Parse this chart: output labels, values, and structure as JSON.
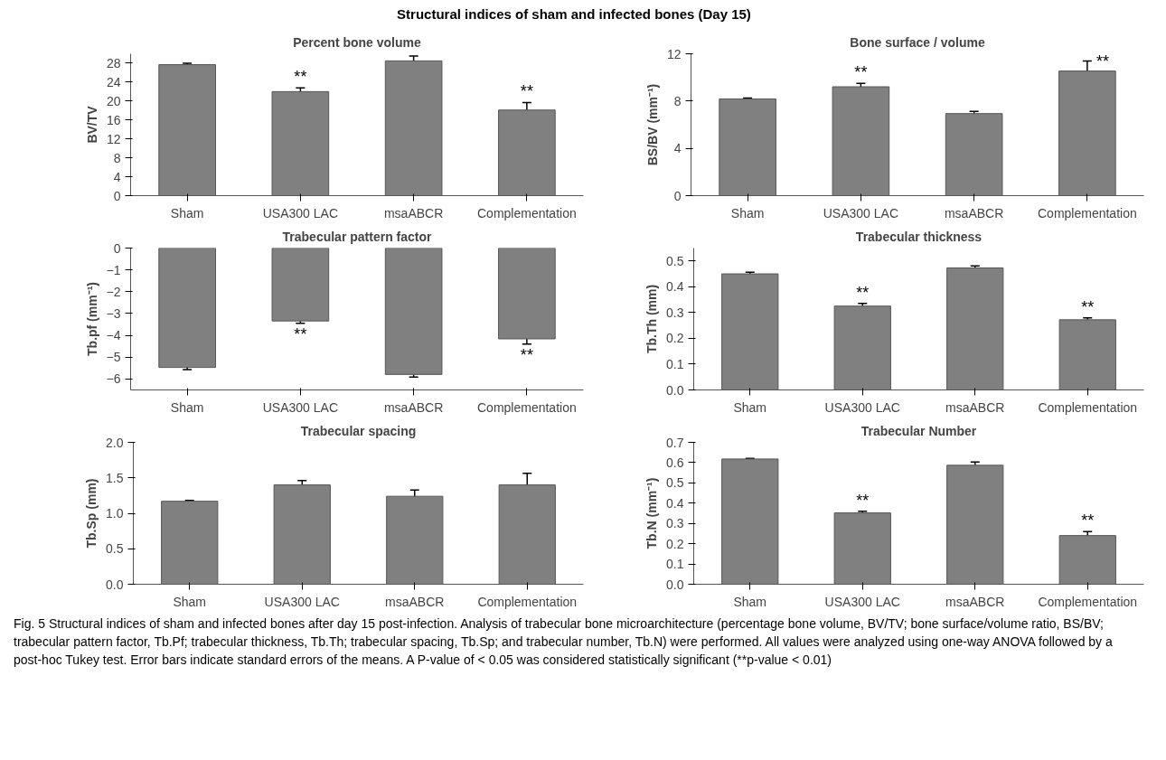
{
  "chart_data": [
    {
      "type": "other",
      "title": "Structural indices of sham and infected bones (Day 15)",
      "annotations": [
        "Fig. 5 Structural indices of sham and infected bones after day 15 post-infection. Analysis of trabecular bone microarchitecture (percentage bone volume, BV/TV; bone surface/volume ratio, BS/BV; trabecular pattern factor, Tb.Pf; trabecular thickness, Tb.Th; trabecular spacing, Tb.Sp; and trabecular number, Tb.N) were performed. All values were analyzed using one-way ANOVA followed by a post-hoc Tukey test. Error bars indicate standard errors of the means. A P-value of < 0.05 was considered statistically significant (**p-value < 0.01)"
      ]
    },
    {
      "type": "bar",
      "title": "Percent bone volume",
      "ylabel": "BV/TV",
      "categories": [
        "Sham",
        "USA300 LAC",
        "msaABCR",
        "Complementation"
      ],
      "values": [
        27.7,
        22.0,
        28.5,
        18.1
      ],
      "errors": [
        0.3,
        0.8,
        1.0,
        1.6
      ],
      "color": "#808080",
      "ylim": [
        0,
        30
      ],
      "yticks": [
        0,
        4,
        8,
        12,
        16,
        20,
        24,
        28
      ],
      "grid": false,
      "annotations": [
        {
          "text": "**",
          "x": "USA300 LAC",
          "y": 22.8
        },
        {
          "text": "**",
          "x": "Complementation",
          "y": 19.7
        }
      ]
    },
    {
      "type": "bar",
      "title": "Bone surface / volume",
      "ylabel": "BS/BV (mm⁻¹)",
      "categories": [
        "Sham",
        "USA300 LAC",
        "msaABCR",
        "Complementation"
      ],
      "values": [
        8.18,
        9.21,
        6.94,
        10.54
      ],
      "errors": [
        0.08,
        0.28,
        0.19,
        0.84
      ],
      "color": "#808080",
      "ylim": [
        0,
        12
      ],
      "yticks": [
        0,
        4,
        8,
        12
      ],
      "grid": false,
      "annotations": [
        {
          "text": "**",
          "x": "USA300 LAC",
          "y": 9.49
        },
        {
          "text": "**",
          "x": "Complementation",
          "y": 11.38
        }
      ]
    },
    {
      "type": "bar",
      "title": "Trabecular pattern factor",
      "ylabel": "Tb.pf (mm⁻¹)",
      "categories": [
        "Sham",
        "USA300 LAC",
        "msaABCR",
        "Complementation"
      ],
      "values": [
        -5.47,
        -3.34,
        -5.79,
        -4.16
      ],
      "errors": [
        0.1,
        0.11,
        0.12,
        0.24
      ],
      "color": "#808080",
      "ylim": [
        -6.5,
        0
      ],
      "yticks": [
        -6,
        -5,
        -4,
        -3,
        -2,
        -1,
        0
      ],
      "grid": false,
      "annotations": [
        {
          "text": "**",
          "x": "USA300 LAC",
          "y": -3.45
        },
        {
          "text": "**",
          "x": "Complementation",
          "y": -4.4
        }
      ]
    },
    {
      "type": "bar",
      "title": "Trabecular thickness",
      "ylabel": "Tb.Th (mm)",
      "categories": [
        "Sham",
        "USA300 LAC",
        "msaABCR",
        "Complementation"
      ],
      "values": [
        0.45,
        0.325,
        0.473,
        0.272
      ],
      "errors": [
        0.006,
        0.01,
        0.008,
        0.007
      ],
      "color": "#808080",
      "ylim": [
        0,
        0.55
      ],
      "yticks": [
        {
          "value": 0,
          "label": "0.0"
        },
        0.1,
        0.2,
        0.3,
        0.4,
        0.5
      ],
      "grid": false,
      "annotations": [
        {
          "text": "**",
          "x": "USA300 LAC",
          "y": 0.335
        },
        {
          "text": "**",
          "x": "Complementation",
          "y": 0.279
        }
      ]
    },
    {
      "type": "bar",
      "title": "Trabecular spacing",
      "ylabel": "Tb.Sp (mm)",
      "categories": [
        "Sham",
        "USA300 LAC",
        "msaABCR",
        "Complementation"
      ],
      "values": [
        1.17,
        1.4,
        1.24,
        1.4
      ],
      "errors": [
        0.01,
        0.063,
        0.088,
        0.163
      ],
      "color": "#808080",
      "ylim": [
        0,
        2
      ],
      "yticks": [
        {
          "value": 0,
          "label": "0.0"
        },
        0.5,
        {
          "value": 1,
          "label": "1.0"
        },
        1.5,
        {
          "value": 2,
          "label": "2.0"
        }
      ],
      "grid": false
    },
    {
      "type": "bar",
      "title": "Trabecular Number",
      "ylabel": "Tb.N (mm⁻¹)",
      "categories": [
        "Sham",
        "USA300 LAC",
        "msaABCR",
        "Complementation"
      ],
      "values": [
        0.618,
        0.352,
        0.587,
        0.24
      ],
      "errors": [
        0.003,
        0.008,
        0.016,
        0.02
      ],
      "color": "#808080",
      "ylim": [
        0,
        0.7
      ],
      "yticks": [
        {
          "value": 0,
          "label": "0.0"
        },
        0.1,
        0.2,
        0.3,
        0.4,
        0.5,
        0.6,
        0.7
      ],
      "grid": false,
      "annotations": [
        {
          "text": "**",
          "x": "USA300 LAC",
          "y": 0.36
        },
        {
          "text": "**",
          "x": "Complementation",
          "y": 0.26
        }
      ]
    }
  ]
}
